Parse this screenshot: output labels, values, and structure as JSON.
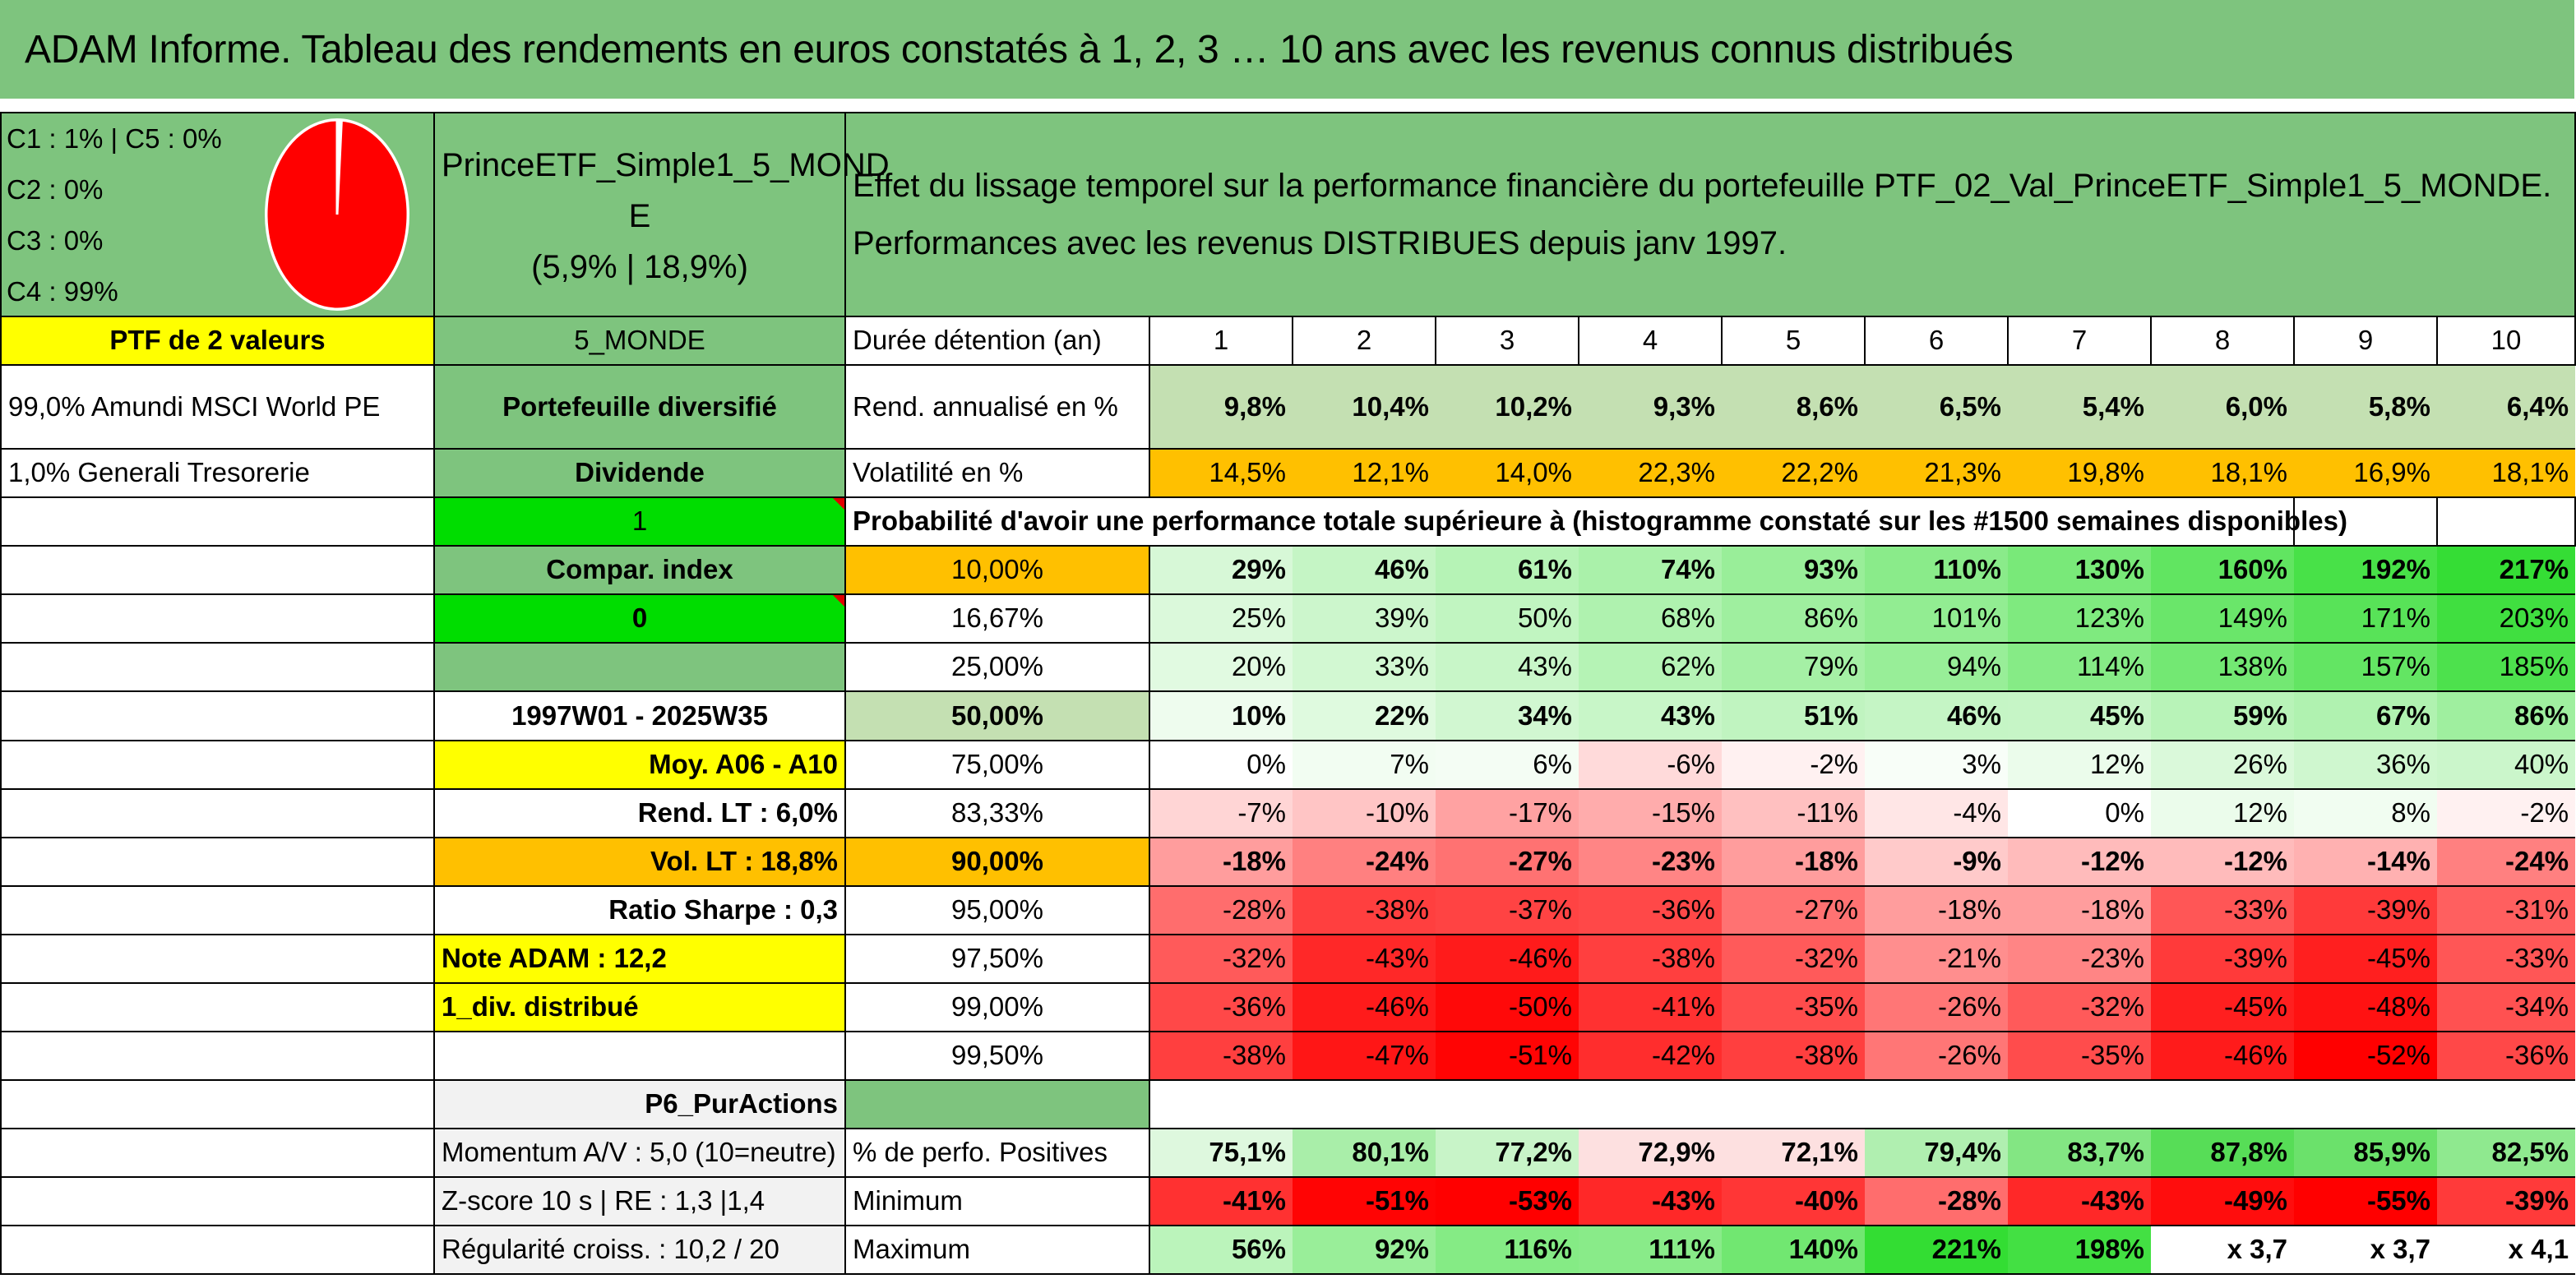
{
  "title": "ADAM Informe. Tableau des rendements en euros constatés à 1, 2, 3 … 10 ans avec les revenus connus distribués",
  "allocation": [
    "C1 : 1% | C5 : 0%",
    "C2 : 0%",
    "C3 : 0%",
    "C4 : 99%"
  ],
  "pie": {
    "share_c4": 0.99,
    "share_c1": 0.01,
    "color_main": "#ff0000",
    "color_small": "#ffffff"
  },
  "fund_name_1": "PrinceETF_Simple1_5_MOND",
  "fund_name_2": "E",
  "fund_stats": "(5,9% | 18,9%)",
  "description_1": "Effet du lissage temporel sur la performance financière du portefeuille PTF_02_Val_PrinceETF_Simple1_5_MONDE.",
  "description_2": "Performances avec les revenus DISTRIBUES depuis janv 1997.",
  "left": {
    "ptf_count": "PTF de 2 valeurs",
    "holding_1": "99,0% Amundi MSCI World PE",
    "holding_2": "1,0% Generali Tresorerie"
  },
  "mid": {
    "code": "5_MONDE",
    "diversification": "Portefeuille diversifié",
    "dividend_label": "Dividende",
    "dividend_value": "1",
    "compar_label": "Compar. index",
    "compar_value": "0",
    "period": "1997W01 - 2025W35",
    "avg": "Moy. A06 - A10",
    "rend_lt": "Rend. LT : 6,0%",
    "vol_lt": "Vol. LT : 18,8%",
    "sharpe": "Ratio Sharpe : 0,3",
    "note": "Note ADAM : 12,2",
    "div_distrib": "1_div. distribué",
    "category": "P6_PurActions",
    "momentum": "Momentum A/V : 5,0 (10=neutre)",
    "zscore": "Z-score 10 s | RE : 1,3 |1,4",
    "regularity": "Régularité croiss. : 10,2 / 20"
  },
  "table": {
    "duration_label": "Durée détention (an)",
    "years": [
      "1",
      "2",
      "3",
      "4",
      "5",
      "6",
      "7",
      "8",
      "9",
      "10"
    ],
    "rend_label": "Rend. annualisé en %",
    "rend": [
      "9,8%",
      "10,4%",
      "10,2%",
      "9,3%",
      "8,6%",
      "6,5%",
      "5,4%",
      "6,0%",
      "5,8%",
      "6,4%"
    ],
    "vol_label": "Volatilité en %",
    "vol": [
      "14,5%",
      "12,1%",
      "14,0%",
      "22,3%",
      "22,2%",
      "21,3%",
      "19,8%",
      "18,1%",
      "16,9%",
      "18,1%"
    ],
    "prob_heading": "Probabilité d'avoir une performance totale supérieure à (histogramme constaté sur les #1500 semaines disponibles)",
    "quantiles": [
      {
        "label": "10,00%",
        "values": [
          "29%",
          "46%",
          "61%",
          "74%",
          "93%",
          "110%",
          "130%",
          "160%",
          "192%",
          "217%"
        ]
      },
      {
        "label": "16,67%",
        "values": [
          "25%",
          "39%",
          "50%",
          "68%",
          "86%",
          "101%",
          "123%",
          "149%",
          "171%",
          "203%"
        ]
      },
      {
        "label": "25,00%",
        "values": [
          "20%",
          "33%",
          "43%",
          "62%",
          "79%",
          "94%",
          "114%",
          "138%",
          "157%",
          "185%"
        ]
      },
      {
        "label": "50,00%",
        "values": [
          "10%",
          "22%",
          "34%",
          "43%",
          "51%",
          "46%",
          "45%",
          "59%",
          "67%",
          "86%"
        ]
      },
      {
        "label": "75,00%",
        "values": [
          "0%",
          "7%",
          "6%",
          "-6%",
          "-2%",
          "3%",
          "12%",
          "26%",
          "36%",
          "40%"
        ]
      },
      {
        "label": "83,33%",
        "values": [
          "-7%",
          "-10%",
          "-17%",
          "-15%",
          "-11%",
          "-4%",
          "0%",
          "12%",
          "8%",
          "-2%"
        ]
      },
      {
        "label": "90,00%",
        "values": [
          "-18%",
          "-24%",
          "-27%",
          "-23%",
          "-18%",
          "-9%",
          "-12%",
          "-12%",
          "-14%",
          "-24%"
        ]
      },
      {
        "label": "95,00%",
        "values": [
          "-28%",
          "-38%",
          "-37%",
          "-36%",
          "-27%",
          "-18%",
          "-18%",
          "-33%",
          "-39%",
          "-31%"
        ]
      },
      {
        "label": "97,50%",
        "values": [
          "-32%",
          "-43%",
          "-46%",
          "-38%",
          "-32%",
          "-21%",
          "-23%",
          "-39%",
          "-45%",
          "-33%"
        ]
      },
      {
        "label": "99,00%",
        "values": [
          "-36%",
          "-46%",
          "-50%",
          "-41%",
          "-35%",
          "-26%",
          "-32%",
          "-45%",
          "-48%",
          "-34%"
        ]
      },
      {
        "label": "99,50%",
        "values": [
          "-38%",
          "-47%",
          "-51%",
          "-42%",
          "-38%",
          "-26%",
          "-35%",
          "-46%",
          "-52%",
          "-36%"
        ]
      }
    ],
    "pos_label": "% de perfo. Positives",
    "pos": [
      "75,1%",
      "80,1%",
      "77,2%",
      "72,9%",
      "72,1%",
      "79,4%",
      "83,7%",
      "87,8%",
      "85,9%",
      "82,5%"
    ],
    "min_label": "Minimum",
    "min": [
      "-41%",
      "-51%",
      "-53%",
      "-43%",
      "-40%",
      "-28%",
      "-43%",
      "-49%",
      "-55%",
      "-39%"
    ],
    "max_label": "Maximum",
    "max": [
      "56%",
      "92%",
      "116%",
      "111%",
      "140%",
      "221%",
      "198%",
      "x 3,7",
      "x 3,7",
      "x 4,1"
    ]
  }
}
